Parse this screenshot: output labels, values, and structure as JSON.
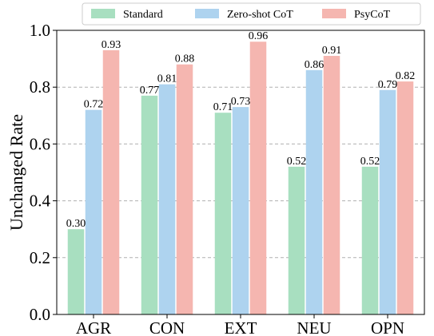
{
  "chart_data": {
    "type": "bar",
    "categories": [
      "AGR",
      "CON",
      "EXT",
      "NEU",
      "OPN"
    ],
    "series": [
      {
        "name": "Standard",
        "color": "#a8dfc0",
        "values": [
          0.3,
          0.77,
          0.71,
          0.52,
          0.52
        ],
        "labels": [
          "0.30",
          "0.77",
          "0.71",
          "0.52",
          "0.52"
        ]
      },
      {
        "name": "Zero-shot CoT",
        "color": "#aed3ef",
        "values": [
          0.72,
          0.81,
          0.73,
          0.86,
          0.79
        ],
        "labels": [
          "0.72",
          "0.81",
          "0.73",
          "0.86",
          "0.79"
        ]
      },
      {
        "name": "PsyCoT",
        "color": "#f5b6b0",
        "values": [
          0.93,
          0.88,
          0.96,
          0.91,
          0.82
        ],
        "labels": [
          "0.93",
          "0.88",
          "0.96",
          "0.91",
          "0.82"
        ]
      }
    ],
    "title": "",
    "xlabel": "",
    "ylabel": "Unchanged Rate",
    "ylim": [
      0,
      1.0
    ],
    "yticks": [
      "0.0",
      "0.2",
      "0.4",
      "0.6",
      "0.8",
      "1.0"
    ],
    "grid": "horizontal dashed",
    "legend": "top"
  }
}
